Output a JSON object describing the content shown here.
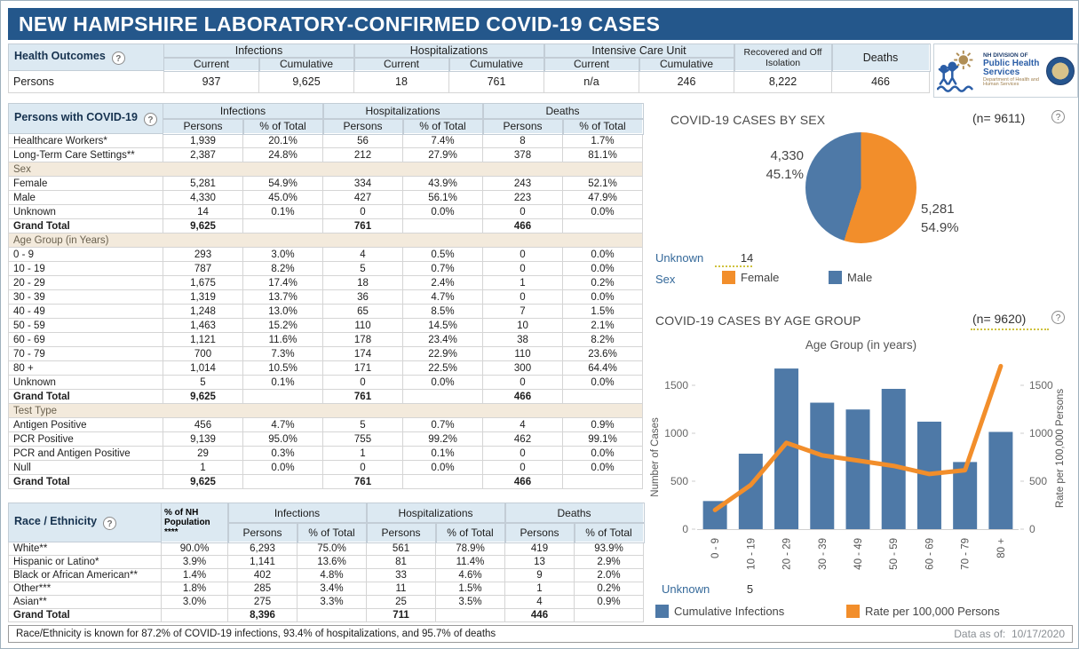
{
  "title": "NEW HAMPSHIRE LABORATORY-CONFIRMED COVID-19 CASES",
  "colors": {
    "header_blue": "#24578B",
    "panel_blue": "#DCE9F2",
    "section_beige": "#F3EADC",
    "bar_blue": "#4E79A7",
    "line_orange": "#F28E2B"
  },
  "health_outcomes": {
    "label": "Health Outcomes",
    "groups": [
      "Infections",
      "Hospitalizations",
      "Intensive Care Unit"
    ],
    "sub": [
      "Current",
      "Cumulative"
    ],
    "recovered_label": "Recovered and Off Isolation",
    "deaths_label": "Deaths",
    "row_label": "Persons",
    "values": [
      "937",
      "9,625",
      "18",
      "761",
      "n/a",
      "246",
      "8,222",
      "466"
    ]
  },
  "logo": {
    "line1": "NH DIVISION OF",
    "line2": "Public Health Services",
    "line3": "Department of Health and Human Services"
  },
  "persons_table": {
    "label": "Persons with COVID-19",
    "groups": [
      "Infections",
      "Hospitalizations",
      "Deaths"
    ],
    "sub": [
      "Persons",
      "% of Total"
    ],
    "rows": [
      {
        "type": "data",
        "label": "Healthcare Workers*",
        "values": [
          "1,939",
          "20.1%",
          "56",
          "7.4%",
          "8",
          "1.7%"
        ]
      },
      {
        "type": "data",
        "label": "Long-Term Care Settings**",
        "values": [
          "2,387",
          "24.8%",
          "212",
          "27.9%",
          "378",
          "81.1%"
        ]
      },
      {
        "type": "section",
        "label": "Sex"
      },
      {
        "type": "data",
        "label": "Female",
        "values": [
          "5,281",
          "54.9%",
          "334",
          "43.9%",
          "243",
          "52.1%"
        ]
      },
      {
        "type": "data",
        "label": "Male",
        "values": [
          "4,330",
          "45.0%",
          "427",
          "56.1%",
          "223",
          "47.9%"
        ]
      },
      {
        "type": "data",
        "label": "Unknown",
        "values": [
          "14",
          "0.1%",
          "0",
          "0.0%",
          "0",
          "0.0%"
        ]
      },
      {
        "type": "total",
        "label": "Grand Total",
        "values": [
          "9,625",
          "",
          "761",
          "",
          "466",
          ""
        ]
      },
      {
        "type": "section",
        "label": "Age Group (in Years)"
      },
      {
        "type": "data",
        "label": "0 - 9",
        "values": [
          "293",
          "3.0%",
          "4",
          "0.5%",
          "0",
          "0.0%"
        ]
      },
      {
        "type": "data",
        "label": "10 - 19",
        "values": [
          "787",
          "8.2%",
          "5",
          "0.7%",
          "0",
          "0.0%"
        ]
      },
      {
        "type": "data",
        "label": "20 - 29",
        "values": [
          "1,675",
          "17.4%",
          "18",
          "2.4%",
          "1",
          "0.2%"
        ]
      },
      {
        "type": "data",
        "label": "30 - 39",
        "values": [
          "1,319",
          "13.7%",
          "36",
          "4.7%",
          "0",
          "0.0%"
        ]
      },
      {
        "type": "data",
        "label": "40 - 49",
        "values": [
          "1,248",
          "13.0%",
          "65",
          "8.5%",
          "7",
          "1.5%"
        ]
      },
      {
        "type": "data",
        "label": "50 - 59",
        "values": [
          "1,463",
          "15.2%",
          "110",
          "14.5%",
          "10",
          "2.1%"
        ]
      },
      {
        "type": "data",
        "label": "60 - 69",
        "values": [
          "1,121",
          "11.6%",
          "178",
          "23.4%",
          "38",
          "8.2%"
        ]
      },
      {
        "type": "data",
        "label": "70 - 79",
        "values": [
          "700",
          "7.3%",
          "174",
          "22.9%",
          "110",
          "23.6%"
        ]
      },
      {
        "type": "data",
        "label": "80 +",
        "values": [
          "1,014",
          "10.5%",
          "171",
          "22.5%",
          "300",
          "64.4%"
        ]
      },
      {
        "type": "data",
        "label": "Unknown",
        "values": [
          "5",
          "0.1%",
          "0",
          "0.0%",
          "0",
          "0.0%"
        ]
      },
      {
        "type": "total",
        "label": "Grand Total",
        "values": [
          "9,625",
          "",
          "761",
          "",
          "466",
          ""
        ]
      },
      {
        "type": "section",
        "label": "Test Type"
      },
      {
        "type": "data",
        "label": "Antigen Positive",
        "values": [
          "456",
          "4.7%",
          "5",
          "0.7%",
          "4",
          "0.9%"
        ]
      },
      {
        "type": "data",
        "label": "PCR Positive",
        "values": [
          "9,139",
          "95.0%",
          "755",
          "99.2%",
          "462",
          "99.1%"
        ]
      },
      {
        "type": "data",
        "label": "PCR and Antigen Positive",
        "values": [
          "29",
          "0.3%",
          "1",
          "0.1%",
          "0",
          "0.0%"
        ]
      },
      {
        "type": "data",
        "label": "Null",
        "values": [
          "1",
          "0.0%",
          "0",
          "0.0%",
          "0",
          "0.0%"
        ]
      },
      {
        "type": "total",
        "label": "Grand Total",
        "values": [
          "9,625",
          "",
          "761",
          "",
          "466",
          ""
        ]
      }
    ]
  },
  "race_table": {
    "label": "Race / Ethnicity",
    "pop_header": "% of NH Population ****",
    "groups": [
      "Infections",
      "Hospitalizations",
      "Deaths"
    ],
    "sub": [
      "Persons",
      "% of Total"
    ],
    "rows": [
      {
        "type": "data",
        "label": "White**",
        "pop": "90.0%",
        "values": [
          "6,293",
          "75.0%",
          "561",
          "78.9%",
          "419",
          "93.9%"
        ]
      },
      {
        "type": "data",
        "label": "Hispanic or Latino*",
        "pop": "3.9%",
        "values": [
          "1,141",
          "13.6%",
          "81",
          "11.4%",
          "13",
          "2.9%"
        ]
      },
      {
        "type": "data",
        "label": "Black or African American**",
        "pop": "1.4%",
        "values": [
          "402",
          "4.8%",
          "33",
          "4.6%",
          "9",
          "2.0%"
        ]
      },
      {
        "type": "data",
        "label": "Other***",
        "pop": "1.8%",
        "values": [
          "285",
          "3.4%",
          "11",
          "1.5%",
          "1",
          "0.2%"
        ]
      },
      {
        "type": "data",
        "label": "Asian**",
        "pop": "3.0%",
        "values": [
          "275",
          "3.3%",
          "25",
          "3.5%",
          "4",
          "0.9%"
        ]
      },
      {
        "type": "total",
        "label": "Grand Total",
        "pop": "",
        "values": [
          "8,396",
          "",
          "711",
          "",
          "446",
          ""
        ]
      }
    ]
  },
  "footnote": "Race/Ethnicity is known for 87.2% of COVID-19 infections, 93.4% of hospitalizations, and 95.7% of deaths",
  "data_as_of_label": "Data as of:",
  "data_as_of_value": "10/17/2020",
  "chart_data": [
    {
      "type": "pie",
      "title": "COVID-19 CASES BY SEX",
      "n_label": "(n= 9611)",
      "legend_title": "Sex",
      "slices": [
        {
          "label": "Female",
          "value": 5281,
          "display": "5,281",
          "pct": "54.9%",
          "color": "#F28E2B"
        },
        {
          "label": "Male",
          "value": 4330,
          "display": "4,330",
          "pct": "45.1%",
          "color": "#4E79A7"
        }
      ],
      "unknown_label": "Unknown",
      "unknown_value": "14"
    },
    {
      "type": "bar+line",
      "title": "COVID-19 CASES BY AGE GROUP",
      "n_label": "(n= 9620)",
      "chart_title": "Age Group (in years)",
      "categories": [
        "0 - 9",
        "10 - 19",
        "20 - 29",
        "30 - 39",
        "40 - 49",
        "50 - 59",
        "60 - 69",
        "70 - 79",
        "80 +"
      ],
      "series": [
        {
          "name": "Cumulative Infections",
          "type": "bar",
          "color": "#4E79A7",
          "values": [
            293,
            787,
            1675,
            1319,
            1248,
            1463,
            1121,
            700,
            1014
          ]
        },
        {
          "name": "Rate per 100,000 Persons",
          "type": "line",
          "color": "#F28E2B",
          "values": [
            200,
            460,
            900,
            770,
            715,
            660,
            575,
            615,
            1700
          ]
        }
      ],
      "ylabel_left": "Number of Cases",
      "ylabel_right": "Rate per 100,000 Persons",
      "yticks": [
        0,
        500,
        1000,
        1500
      ],
      "ylim": [
        0,
        1750
      ],
      "grid": false,
      "legend_position": "bottom",
      "unknown_label": "Unknown",
      "unknown_value": "5"
    }
  ]
}
